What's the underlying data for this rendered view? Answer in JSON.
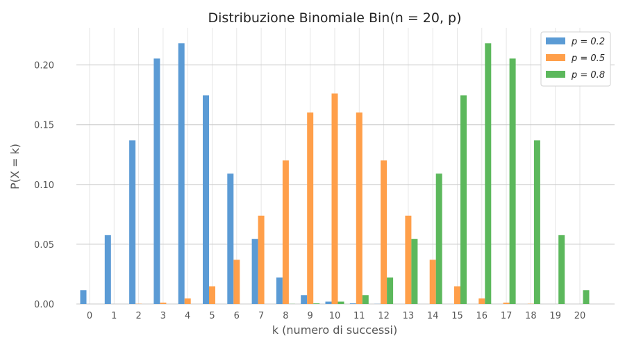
{
  "chart_data": {
    "type": "bar",
    "title": "Distribuzione Binomiale Bin(n = 20, p)",
    "xlabel": "k (numero di successi)",
    "ylabel": "P(X = k)",
    "categories": [
      "0",
      "1",
      "2",
      "3",
      "4",
      "5",
      "6",
      "7",
      "8",
      "9",
      "10",
      "11",
      "12",
      "13",
      "14",
      "15",
      "16",
      "17",
      "18",
      "19",
      "20"
    ],
    "ylim": [
      0,
      0.23
    ],
    "yticks": [
      0.0,
      0.05,
      0.1,
      0.15,
      0.2
    ],
    "ytick_labels": [
      "0.00",
      "0.05",
      "0.10",
      "0.15",
      "0.20"
    ],
    "grid": true,
    "legend_position": "top-right",
    "series": [
      {
        "name": "p = 0.2",
        "color": "#5b9bd5",
        "values": [
          0.0115,
          0.0576,
          0.1369,
          0.2054,
          0.2182,
          0.1746,
          0.1091,
          0.0545,
          0.0222,
          0.0074,
          0.002,
          0.0005,
          0.0001,
          0.0,
          0.0,
          0.0,
          0.0,
          0.0,
          0.0,
          0.0,
          0.0
        ]
      },
      {
        "name": "p = 0.5",
        "color": "#ff9f4a",
        "values": [
          0.0,
          0.0,
          0.0002,
          0.0011,
          0.0046,
          0.0148,
          0.037,
          0.0739,
          0.1201,
          0.1602,
          0.1762,
          0.1602,
          0.1201,
          0.0739,
          0.037,
          0.0148,
          0.0046,
          0.0011,
          0.0002,
          0.0,
          0.0
        ]
      },
      {
        "name": "p = 0.8",
        "color": "#5cb85c",
        "values": [
          0.0,
          0.0,
          0.0,
          0.0,
          0.0,
          0.0,
          0.0,
          0.0,
          0.0001,
          0.0005,
          0.002,
          0.0074,
          0.0222,
          0.0545,
          0.1091,
          0.1746,
          0.2182,
          0.2054,
          0.1369,
          0.0576,
          0.0115
        ]
      }
    ]
  }
}
